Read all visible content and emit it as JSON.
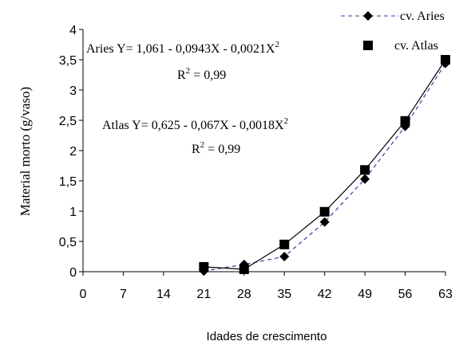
{
  "chart_data": {
    "type": "scatter",
    "ylabel": "Material morto (g/vaso)",
    "xlabel": "Idades de crescimento",
    "xlim": [
      0,
      63
    ],
    "ylim": [
      0,
      4
    ],
    "xticks": [
      "0",
      "7",
      "14",
      "21",
      "28",
      "35",
      "42",
      "49",
      "56",
      "63"
    ],
    "yticks": [
      "0",
      "0,5",
      "1",
      "1,5",
      "2",
      "2,5",
      "3",
      "3,5",
      "4"
    ],
    "xtick_values": [
      0,
      7,
      14,
      21,
      28,
      35,
      42,
      49,
      56,
      63
    ],
    "ytick_values": [
      0,
      0.5,
      1,
      1.5,
      2,
      2.5,
      3,
      3.5,
      4
    ],
    "legend_position": "top-right",
    "grid": false,
    "series": [
      {
        "name": "cv. Aries",
        "marker": "diamond",
        "line": "dashed",
        "color": "#000000",
        "line_color": "#3a3aa0",
        "x": [
          21,
          28,
          35,
          42,
          49,
          56,
          63
        ],
        "y": [
          0.01,
          0.12,
          0.25,
          0.82,
          1.53,
          2.4,
          3.44
        ]
      },
      {
        "name": "cv. Atlas",
        "marker": "square",
        "line": "solid",
        "color": "#000000",
        "line_color": "#000000",
        "x": [
          21,
          28,
          35,
          42,
          49,
          56,
          63
        ],
        "y": [
          0.08,
          0.04,
          0.45,
          0.99,
          1.68,
          2.49,
          3.5
        ]
      }
    ],
    "annotations": [
      {
        "id": "aries_eq",
        "text": "Aries Y= 1,061 - 0,0943X - 0,0021X",
        "sup": "2"
      },
      {
        "id": "aries_r2",
        "text": "R",
        "sup": "2",
        "tail": " = 0,99"
      },
      {
        "id": "atlas_eq",
        "text": "Atlas Y= 0,625  - 0,067X - 0,0018X",
        "sup": "2"
      },
      {
        "id": "atlas_r2",
        "text": "R",
        "sup": "2",
        "tail": " = 0,99"
      }
    ]
  }
}
